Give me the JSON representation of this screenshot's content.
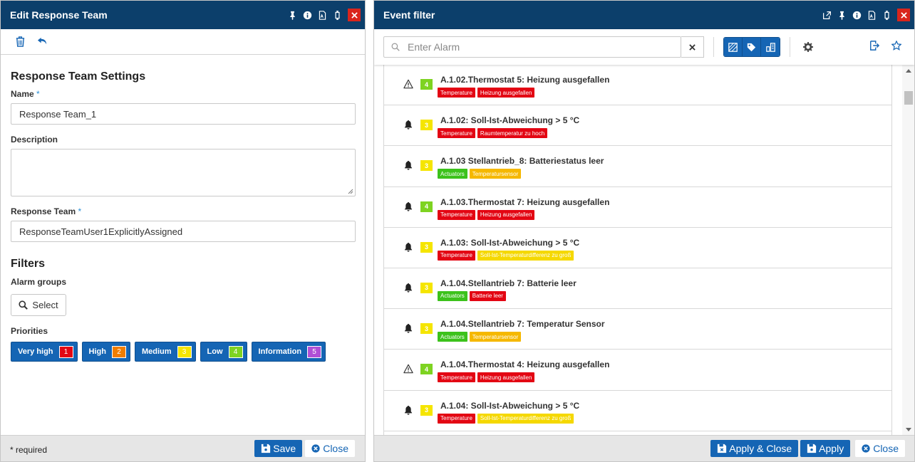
{
  "left_panel": {
    "title": "Edit Response Team",
    "section_title": "Response Team Settings",
    "name_label": "Name",
    "name_value": "Response Team_1",
    "description_label": "Description",
    "response_team_label": "Response Team",
    "response_team_value": "ResponseTeamUser1ExplicitlyAssigned",
    "required_mark": "*",
    "filters_title": "Filters",
    "alarm_groups_label": "Alarm groups",
    "select_label": "Select",
    "priorities_label": "Priorities",
    "priorities": [
      {
        "label": "Very high",
        "num": "1",
        "color": "#e30613"
      },
      {
        "label": "High",
        "num": "2",
        "color": "#f07d00"
      },
      {
        "label": "Medium",
        "num": "3",
        "color": "#f5e500"
      },
      {
        "label": "Low",
        "num": "4",
        "color": "#7ed321"
      },
      {
        "label": "Information",
        "num": "5",
        "color": "#b04fd6"
      }
    ],
    "footer_required": "* required",
    "save_label": "Save",
    "close_label": "Close"
  },
  "right_panel": {
    "title": "Event filter",
    "search_placeholder": "Enter Alarm",
    "events": [
      {
        "icon": "warning-icon",
        "priority": "4",
        "title": "A.1.02.Thermostat 5: Heizung ausgefallen",
        "tags": [
          {
            "text": "Temperature",
            "color": "#e30613"
          },
          {
            "text": "Heizung ausgefallen",
            "color": "#e30613"
          }
        ]
      },
      {
        "icon": "bell-icon",
        "priority": "3",
        "title": "A.1.02: Soll-Ist-Abweichung > 5 °C",
        "tags": [
          {
            "text": "Temperature",
            "color": "#e30613"
          },
          {
            "text": "Raumtemperatur zu hoch",
            "color": "#e30613"
          }
        ]
      },
      {
        "icon": "bell-icon",
        "priority": "3",
        "title": "A.1.03 Stellantrieb_8: Batteriestatus leer",
        "tags": [
          {
            "text": "Actuators",
            "color": "#3cc21b"
          },
          {
            "text": "Temperatursensor",
            "color": "#f5b800"
          }
        ]
      },
      {
        "icon": "bell-icon",
        "priority": "4",
        "title": "A.1.03.Thermostat 7: Heizung ausgefallen",
        "tags": [
          {
            "text": "Temperature",
            "color": "#e30613"
          },
          {
            "text": "Heizung ausgefallen",
            "color": "#e30613"
          }
        ]
      },
      {
        "icon": "bell-icon",
        "priority": "3",
        "title": "A.1.03: Soll-Ist-Abweichung > 5 °C",
        "tags": [
          {
            "text": "Temperature",
            "color": "#e30613"
          },
          {
            "text": "Soll-Ist-Temperaturdifferenz zu groß",
            "color": "#f5d800"
          }
        ]
      },
      {
        "icon": "bell-icon",
        "priority": "3",
        "title": "A.1.04.Stellantrieb 7: Batterie leer",
        "tags": [
          {
            "text": "Actuators",
            "color": "#3cc21b"
          },
          {
            "text": "Batterie leer",
            "color": "#e30613"
          }
        ]
      },
      {
        "icon": "bell-icon",
        "priority": "3",
        "title": "A.1.04.Stellantrieb 7: Temperatur Sensor",
        "tags": [
          {
            "text": "Actuators",
            "color": "#3cc21b"
          },
          {
            "text": "Temperatursensor",
            "color": "#f5b800"
          }
        ]
      },
      {
        "icon": "warning-icon",
        "priority": "4",
        "title": "A.1.04.Thermostat 4: Heizung ausgefallen",
        "tags": [
          {
            "text": "Temperature",
            "color": "#e30613"
          },
          {
            "text": "Heizung ausgefallen",
            "color": "#e30613"
          }
        ]
      },
      {
        "icon": "bell-icon",
        "priority": "3",
        "title": "A.1.04: Soll-Ist-Abweichung > 5 °C",
        "tags": [
          {
            "text": "Temperature",
            "color": "#e30613"
          },
          {
            "text": "Soll-Ist-Temperaturdifferenz zu groß",
            "color": "#f5d800"
          }
        ]
      }
    ],
    "apply_close_label": "Apply & Close",
    "apply_label": "Apply",
    "close_label": "Close"
  },
  "colors": {
    "titlebar": "#0c3f6b",
    "primary": "#1565b4",
    "close_red": "#d9251c",
    "prio3": "#f5e500",
    "prio4": "#7ed321"
  }
}
